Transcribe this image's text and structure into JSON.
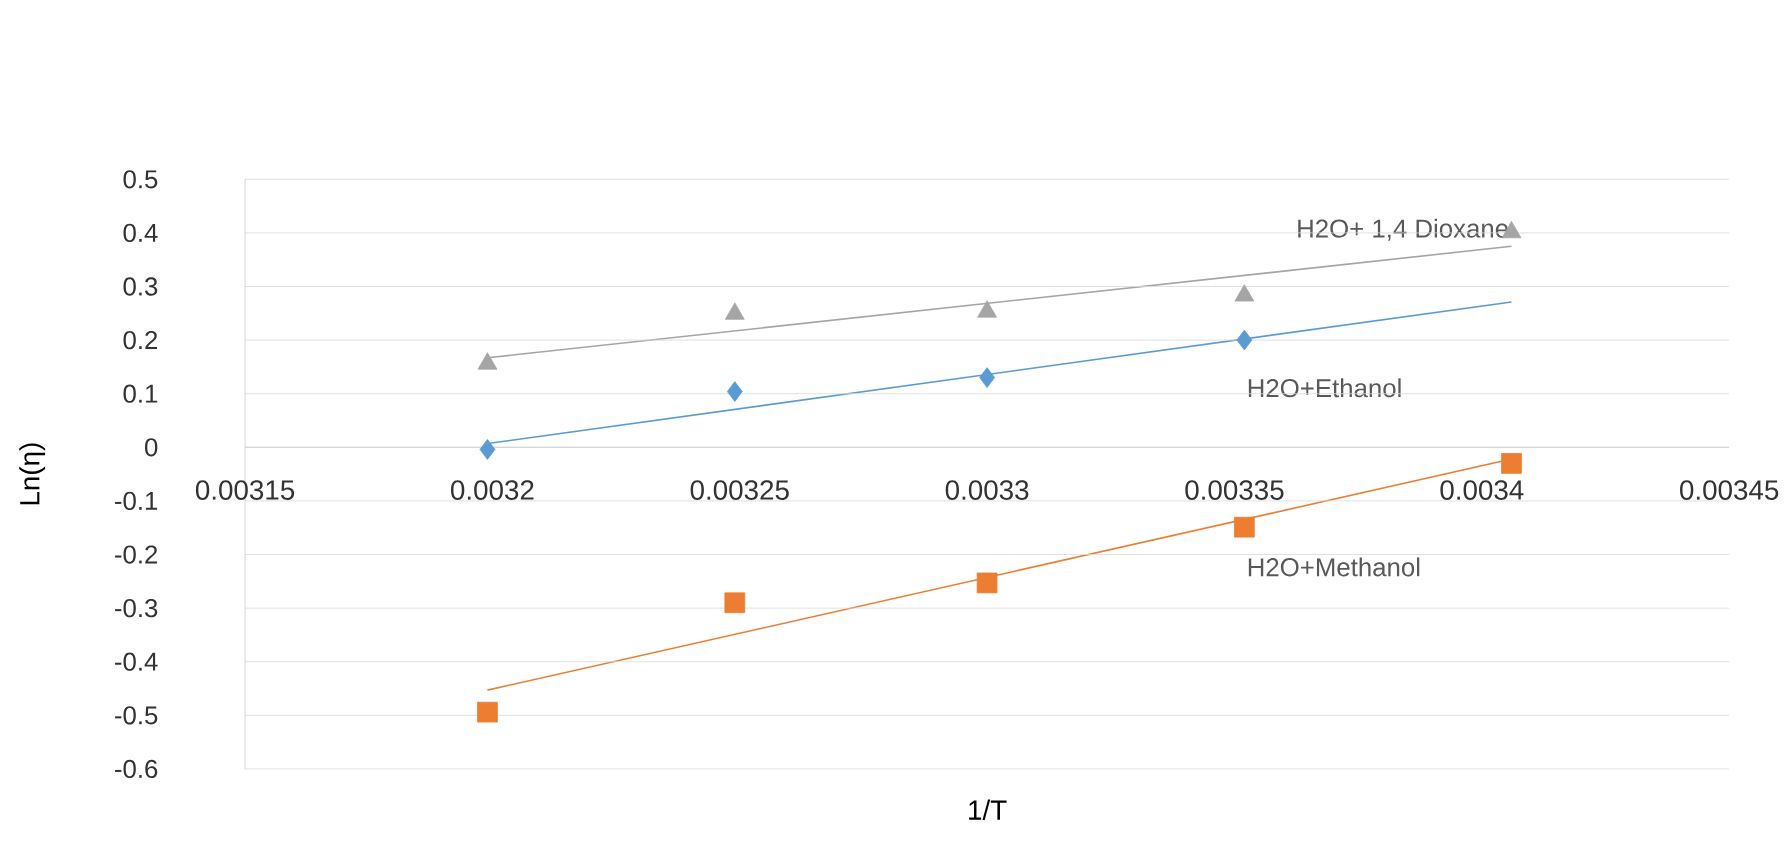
{
  "chart_data": {
    "type": "scatter",
    "xlabel": "1/T",
    "ylabel": "Ln(η)",
    "x": [
      0.003199,
      0.003249,
      0.0033,
      0.003352,
      0.003406
    ],
    "series": [
      {
        "name": "H2O+ 1,4 Dioxane",
        "color": "#a5a5a5",
        "marker": "triangle",
        "values": [
          0.156,
          0.249,
          0.253,
          0.283,
          0.401
        ]
      },
      {
        "name": "H2O+Ethanol",
        "color": "#5b9bd5",
        "marker": "diamond",
        "values": [
          -0.004,
          0.104,
          0.13,
          0.2,
          null
        ]
      },
      {
        "name": "H2O+Methanol",
        "color": "#ed7d31",
        "marker": "square",
        "values": [
          -0.494,
          -0.29,
          -0.253,
          -0.149,
          -0.03
        ]
      },
      {
        "type": "line",
        "color": "#a5a5a5",
        "marker": "none",
        "values": [
          0.167,
          null,
          null,
          null,
          0.375
        ]
      },
      {
        "type": "line",
        "color": "#5b9bd5",
        "marker": "none",
        "values": [
          0.007,
          null,
          null,
          null,
          0.271
        ]
      },
      {
        "type": "line",
        "color": "#ed7d31",
        "marker": "none",
        "values": [
          -0.453,
          null,
          null,
          null,
          -0.022
        ]
      }
    ],
    "xlim": [
      0.00315,
      0.00345
    ],
    "xticks": [
      0.00315,
      0.0032,
      0.00325,
      0.0033,
      0.00335,
      0.0034,
      0.00345
    ],
    "ylim": [
      -0.6,
      0.5
    ],
    "yticks": [
      -0.6,
      -0.5,
      -0.4,
      -0.3,
      -0.2,
      -0.1,
      0,
      0.1,
      0.2,
      0.3,
      0.4,
      0.5
    ],
    "grid": "y"
  }
}
